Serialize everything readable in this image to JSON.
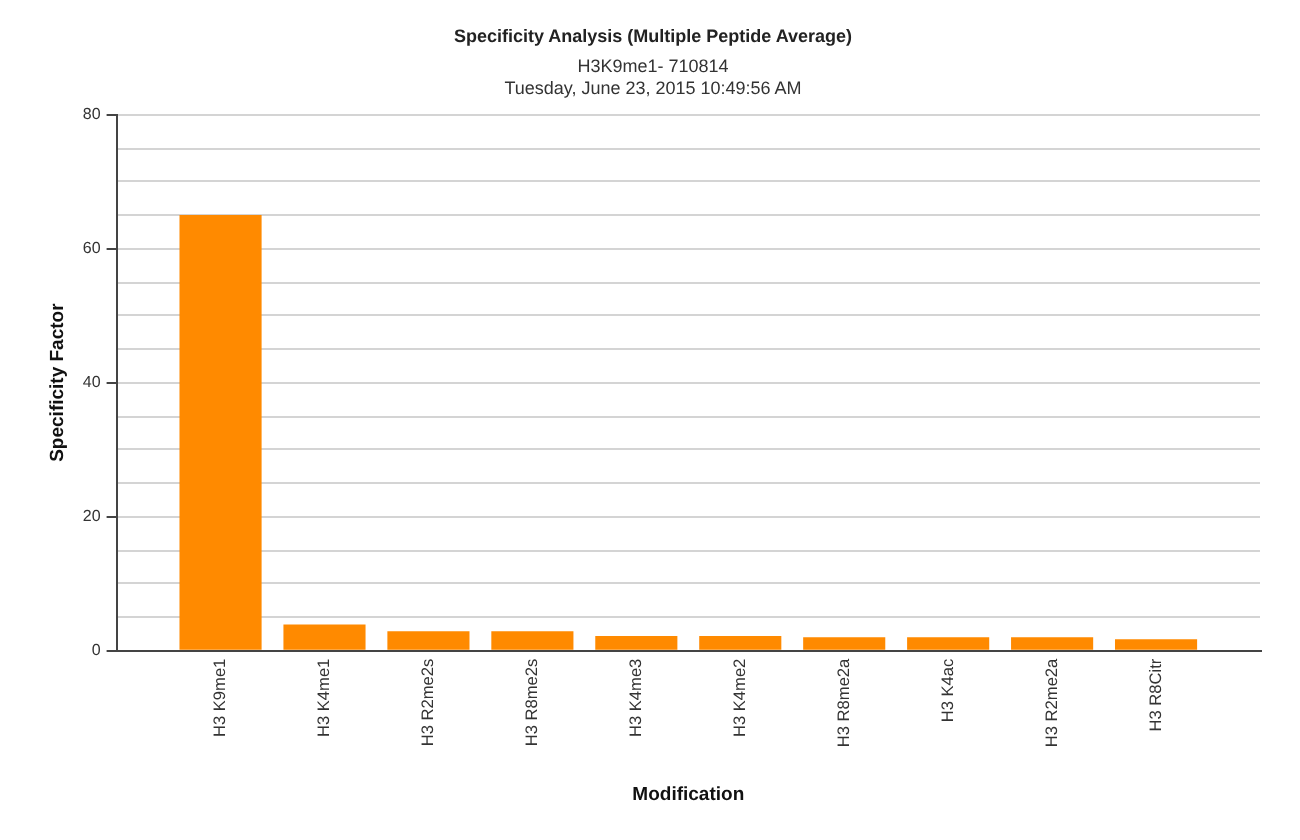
{
  "chart_data": {
    "type": "bar",
    "title": "Specificity Analysis (Multiple Peptide Average)",
    "subtitle": "H3K9me1- 710814",
    "annotations": [
      "Tuesday, June 23, 2015 10:49:56 AM"
    ],
    "xlabel": "Modification",
    "ylabel": "Specificity Factor",
    "categories": [
      "H3 K9me1",
      "H3 K4me1",
      "H3 R2me2s",
      "H3 R8me2s",
      "H3 K4me3",
      "H3 K4me2",
      "H3 R8me2a",
      "H3 K4ac",
      "H3 R2me2a",
      "H3 R8Citr"
    ],
    "values": [
      65,
      3.9,
      2.9,
      2.9,
      2.2,
      2.2,
      2.0,
      2.0,
      2.0,
      1.7
    ],
    "color": "#ff8a00",
    "ylim": [
      0,
      80
    ],
    "yticks": [
      0,
      {
        "value": 5,
        "label": null
      },
      {
        "value": 10,
        "label": null
      },
      {
        "value": 15,
        "label": null
      },
      20,
      {
        "value": 25,
        "label": null
      },
      {
        "value": 30,
        "label": null
      },
      {
        "value": 35,
        "label": null
      },
      40,
      {
        "value": 45,
        "label": null
      },
      {
        "value": 50,
        "label": null
      },
      {
        "value": 55,
        "label": null
      },
      60,
      {
        "value": 65,
        "label": null
      },
      {
        "value": 70,
        "label": null
      },
      {
        "value": 75,
        "label": null
      },
      80
    ],
    "grid": "y"
  }
}
